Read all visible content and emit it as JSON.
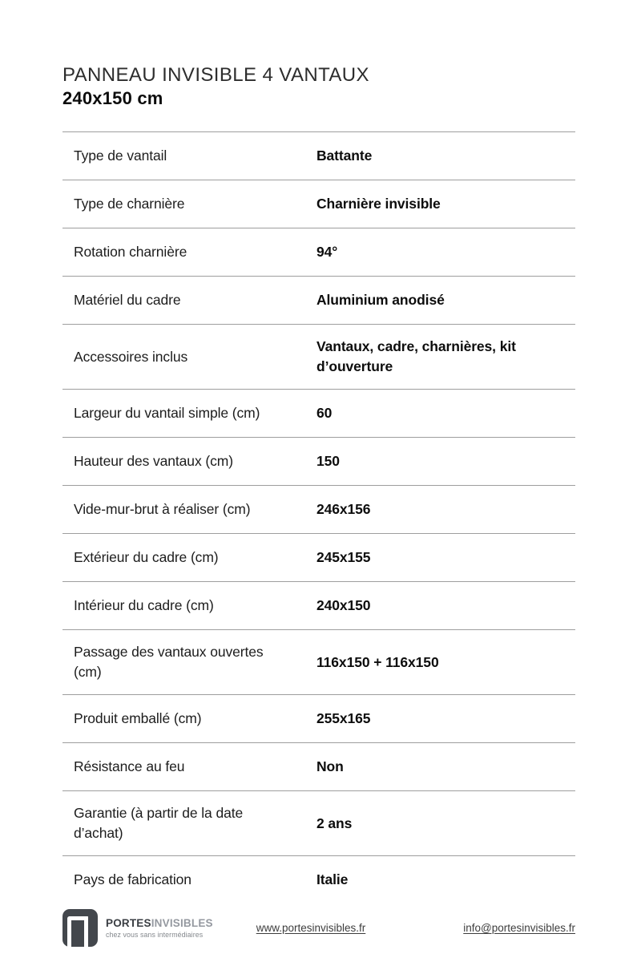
{
  "header": {
    "title": "PANNEAU INVISIBLE 4 VANTAUX",
    "subtitle": "240x150 cm"
  },
  "table": {
    "rows": [
      {
        "label": "Type de vantail",
        "value": "Battante"
      },
      {
        "label": "Type de charnière",
        "value": "Charnière invisible"
      },
      {
        "label": "Rotation charnière",
        "value": "94°"
      },
      {
        "label": "Matériel du cadre",
        "value": "Aluminium anodisé"
      },
      {
        "label": "Accessoires inclus",
        "value": "Vantaux, cadre, charnières, kit d’ouverture"
      },
      {
        "label": "Largeur du vantail simple (cm)",
        "value": "60"
      },
      {
        "label": "Hauteur des vantaux (cm)",
        "value": "150"
      },
      {
        "label": "Vide-mur-brut à réaliser (cm)",
        "value": "246x156"
      },
      {
        "label": "Extérieur du cadre (cm)",
        "value": "245x155"
      },
      {
        "label": "Intérieur du cadre (cm)",
        "value": "240x150"
      },
      {
        "label": "Passage des vantaux ouvertes (cm)",
        "value": "116x150 + 116x150"
      },
      {
        "label": "Produit emballé (cm)",
        "value": "255x165"
      },
      {
        "label": "Résistance au feu",
        "value": "Non"
      },
      {
        "label": "Garantie (à partir de la date d’achat)",
        "value": "2 ans"
      },
      {
        "label": "Pays de fabrication",
        "value": "Italie"
      }
    ]
  },
  "footer": {
    "brand_bold": "PORTES",
    "brand_light": "INVISIBLES",
    "tagline": "chez vous sans intermédiaires",
    "logo_icon": "door-icon",
    "website": "www.portesinvisibles.fr",
    "email": "info@portesinvisibles.fr"
  },
  "colors": {
    "brand_dark": "#43474c",
    "divider_gray": "#9e9e9e",
    "text_primary": "#0d0d0d",
    "text_gray": "#84888d"
  }
}
